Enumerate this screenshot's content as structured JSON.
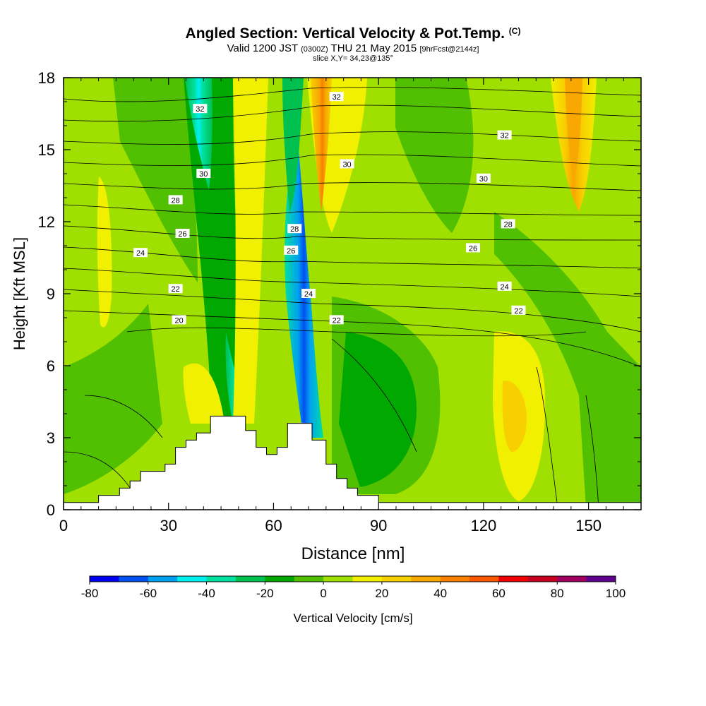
{
  "chart_data": {
    "type": "heatmap",
    "title": "Angled Section: Vertical Velocity & Pot.Temp.",
    "title_unit": "(C)",
    "subtitle": {
      "valid": "Valid 1200 JST",
      "utc": "(0300Z)",
      "date": "THU 21 May 2015",
      "forecast": "[9hrFcst@2144z]"
    },
    "slice_label": "slice X,Y= 34,23@135°",
    "xlabel": "Distance [nm]",
    "ylabel": "Height [Kft MSL]",
    "xlim": [
      0,
      165
    ],
    "ylim": [
      0,
      18
    ],
    "x_ticks": [
      "0",
      "30",
      "60",
      "90",
      "120",
      "150"
    ],
    "y_ticks": [
      "0",
      "3",
      "6",
      "9",
      "12",
      "15",
      "18"
    ],
    "colorbar": {
      "label": "Vertical Velocity [cm/s]",
      "ticks": [
        "-80",
        "-60",
        "-40",
        "-20",
        "0",
        "20",
        "40",
        "60",
        "80",
        "100"
      ],
      "colors": [
        "#0000f0",
        "#0050f0",
        "#00a0f0",
        "#00f0f0",
        "#00e0a0",
        "#00c050",
        "#00a800",
        "#50c000",
        "#a0e000",
        "#f0f000",
        "#f8d000",
        "#f8a800",
        "#f88000",
        "#f85800",
        "#f00000",
        "#c80020",
        "#a00060",
        "#600090"
      ]
    },
    "contour_labels": [
      {
        "x": 39,
        "y": 16.7,
        "text": "32"
      },
      {
        "x": 78,
        "y": 17.2,
        "text": "32"
      },
      {
        "x": 126,
        "y": 15.6,
        "text": "32"
      },
      {
        "x": 40,
        "y": 14.0,
        "text": "30"
      },
      {
        "x": 81,
        "y": 14.4,
        "text": "30"
      },
      {
        "x": 120,
        "y": 13.8,
        "text": "30"
      },
      {
        "x": 32,
        "y": 12.9,
        "text": "28"
      },
      {
        "x": 66,
        "y": 11.7,
        "text": "28"
      },
      {
        "x": 127,
        "y": 11.9,
        "text": "28"
      },
      {
        "x": 34,
        "y": 11.5,
        "text": "26"
      },
      {
        "x": 65,
        "y": 10.8,
        "text": "26"
      },
      {
        "x": 117,
        "y": 10.9,
        "text": "26"
      },
      {
        "x": 22,
        "y": 10.7,
        "text": "24"
      },
      {
        "x": 70,
        "y": 9.0,
        "text": "24"
      },
      {
        "x": 126,
        "y": 9.3,
        "text": "24"
      },
      {
        "x": 32,
        "y": 9.2,
        "text": "22"
      },
      {
        "x": 78,
        "y": 7.9,
        "text": "22"
      },
      {
        "x": 130,
        "y": 8.3,
        "text": "22"
      },
      {
        "x": 33,
        "y": 7.9,
        "text": "20"
      }
    ],
    "terrain": [
      [
        0,
        0.3
      ],
      [
        10,
        0.3
      ],
      [
        10,
        0.6
      ],
      [
        16,
        0.6
      ],
      [
        16,
        0.9
      ],
      [
        19,
        0.9
      ],
      [
        19,
        1.2
      ],
      [
        22,
        1.2
      ],
      [
        22,
        1.6
      ],
      [
        29,
        1.6
      ],
      [
        29,
        1.9
      ],
      [
        32,
        1.9
      ],
      [
        32,
        2.6
      ],
      [
        35,
        2.6
      ],
      [
        35,
        2.9
      ],
      [
        38,
        2.9
      ],
      [
        38,
        3.2
      ],
      [
        42,
        3.2
      ],
      [
        42,
        3.9
      ],
      [
        52,
        3.9
      ],
      [
        52,
        3.3
      ],
      [
        55,
        3.3
      ],
      [
        55,
        2.6
      ],
      [
        58,
        2.6
      ],
      [
        58,
        2.3
      ],
      [
        61,
        2.3
      ],
      [
        61,
        2.6
      ],
      [
        64,
        2.6
      ],
      [
        64,
        3.6
      ],
      [
        71,
        3.6
      ],
      [
        71,
        2.9
      ],
      [
        75,
        2.9
      ],
      [
        75,
        1.9
      ],
      [
        78,
        1.9
      ],
      [
        78,
        1.3
      ],
      [
        81,
        1.3
      ],
      [
        81,
        0.9
      ],
      [
        84,
        0.9
      ],
      [
        84,
        0.6
      ],
      [
        90,
        0.6
      ],
      [
        90,
        0.3
      ],
      [
        165,
        0.3
      ]
    ]
  }
}
